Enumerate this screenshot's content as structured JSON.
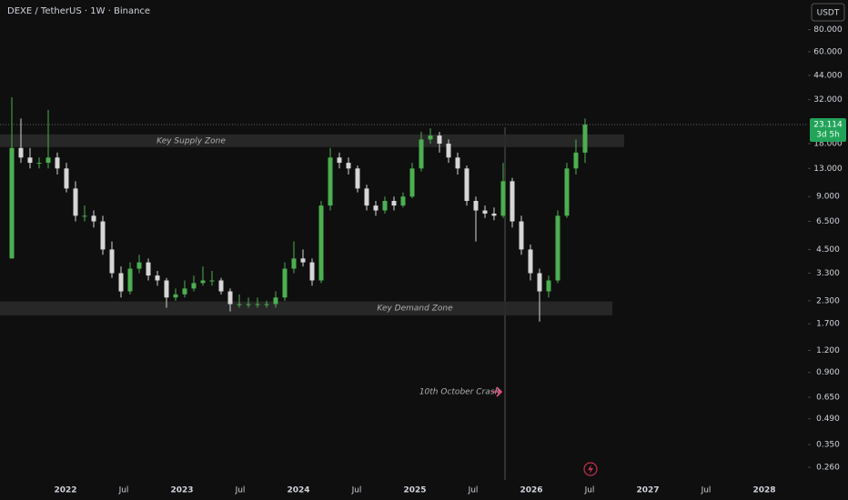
{
  "chart_data": {
    "type": "candlestick",
    "title": "DEXE / TetherUS · 1W · Binance",
    "currency": "USDT",
    "log_scale": true,
    "up_color": "#4caf50",
    "down_color": "#d6d6d6",
    "candles": [
      [
        4,
        33,
        4,
        17
      ],
      [
        17,
        25,
        14,
        15
      ],
      [
        15,
        17,
        13,
        14
      ],
      [
        14,
        15,
        13,
        14
      ],
      [
        14,
        28,
        13,
        15
      ],
      [
        15,
        16,
        12,
        13
      ],
      [
        13,
        14,
        9.5,
        10
      ],
      [
        10,
        11,
        6.5,
        7
      ],
      [
        7,
        8,
        6.5,
        7
      ],
      [
        7,
        7.5,
        6,
        6.5
      ],
      [
        6.5,
        7,
        4.2,
        4.5
      ],
      [
        4.5,
        5,
        3.1,
        3.3
      ],
      [
        3.3,
        3.6,
        2.4,
        2.6
      ],
      [
        2.6,
        3.8,
        2.5,
        3.5
      ],
      [
        3.5,
        4.2,
        3.3,
        3.8
      ],
      [
        3.8,
        4,
        3,
        3.2
      ],
      [
        3.2,
        3.4,
        2.8,
        3
      ],
      [
        3,
        3.1,
        2.1,
        2.4
      ],
      [
        2.4,
        2.7,
        2.3,
        2.5
      ],
      [
        2.5,
        3,
        2.4,
        2.7
      ],
      [
        2.7,
        3.2,
        2.6,
        2.9
      ],
      [
        2.9,
        3.6,
        2.8,
        3
      ],
      [
        3,
        3.4,
        2.8,
        3
      ],
      [
        3,
        3.1,
        2.5,
        2.6
      ],
      [
        2.6,
        2.7,
        2,
        2.2
      ],
      [
        2.2,
        2.5,
        2.1,
        2.2
      ],
      [
        2.2,
        2.4,
        2.1,
        2.2
      ],
      [
        2.2,
        2.4,
        2.1,
        2.2
      ],
      [
        2.2,
        2.3,
        2.1,
        2.2
      ],
      [
        2.2,
        2.6,
        2.1,
        2.4
      ],
      [
        2.4,
        3.8,
        2.3,
        3.5
      ],
      [
        3.5,
        5,
        3.3,
        4
      ],
      [
        4,
        4.5,
        3.6,
        3.8
      ],
      [
        3.8,
        4,
        2.8,
        3
      ],
      [
        3,
        8.5,
        2.9,
        8
      ],
      [
        8,
        17,
        7.5,
        15
      ],
      [
        15,
        16,
        13,
        14
      ],
      [
        14,
        15,
        12,
        13
      ],
      [
        13,
        13.5,
        9.5,
        10
      ],
      [
        10,
        10.5,
        7.5,
        8
      ],
      [
        8,
        8.5,
        7,
        7.5
      ],
      [
        7.5,
        9,
        7.2,
        8.5
      ],
      [
        8.5,
        9,
        7.5,
        8
      ],
      [
        8,
        9.5,
        7.8,
        9
      ],
      [
        9,
        14,
        8.8,
        13
      ],
      [
        13,
        21,
        12.5,
        19
      ],
      [
        19,
        22,
        18,
        20
      ],
      [
        20,
        21,
        16,
        18
      ],
      [
        18,
        19,
        14,
        15
      ],
      [
        15,
        16,
        12,
        13
      ],
      [
        13,
        13.5,
        8,
        8.5
      ],
      [
        8.5,
        9,
        5,
        7.5
      ],
      [
        7.5,
        8,
        6.8,
        7.2
      ],
      [
        7.2,
        7.8,
        6.6,
        7
      ],
      [
        7,
        14,
        6.8,
        11
      ],
      [
        11,
        11.5,
        6,
        6.5
      ],
      [
        6.5,
        7,
        4.2,
        4.5
      ],
      [
        4.5,
        4.8,
        3,
        3.3
      ],
      [
        3.3,
        3.5,
        1.75,
        2.6
      ],
      [
        2.6,
        3.2,
        2.4,
        3
      ],
      [
        3,
        7.5,
        2.9,
        7
      ],
      [
        7,
        14,
        6.8,
        13
      ],
      [
        13,
        19,
        12,
        16
      ],
      [
        16,
        25,
        14,
        23.114
      ]
    ],
    "ylim": [
      0.22,
      118
    ],
    "yticks": [
      {
        "value": 80,
        "label": "80.000"
      },
      {
        "value": 60,
        "label": "60.000"
      },
      {
        "value": 44,
        "label": "44.000"
      },
      {
        "value": 32,
        "label": "32.000"
      },
      {
        "value": 18,
        "label": "18.000"
      },
      {
        "value": 13,
        "label": "13.000"
      },
      {
        "value": 9,
        "label": "9.000"
      },
      {
        "value": 6.5,
        "label": "6.500"
      },
      {
        "value": 4.5,
        "label": "4.500"
      },
      {
        "value": 3.3,
        "label": "3.300"
      },
      {
        "value": 2.3,
        "label": "2.300"
      },
      {
        "value": 1.7,
        "label": "1.700"
      },
      {
        "value": 1.2,
        "label": "1.200"
      },
      {
        "value": 0.9,
        "label": "0.900"
      },
      {
        "value": 0.65,
        "label": "0.650"
      },
      {
        "value": 0.49,
        "label": "0.490"
      },
      {
        "value": 0.35,
        "label": "0.350"
      },
      {
        "value": 0.26,
        "label": "0.260"
      }
    ],
    "xticks": [
      "2022",
      "Jul",
      "2023",
      "Jul",
      "2024",
      "Jul",
      "2025",
      "Jul",
      "2026",
      "Jul",
      "2027",
      "Jul",
      "2028"
    ],
    "last_price": 23.114,
    "countdown": "3d 5h",
    "zones": [
      {
        "label": "Key Supply Zone",
        "range": [
          17.2,
          20.3
        ]
      },
      {
        "label": "Key Demand Zone",
        "range": [
          1.9,
          2.28
        ]
      }
    ],
    "annotation": "10th October Crash"
  }
}
